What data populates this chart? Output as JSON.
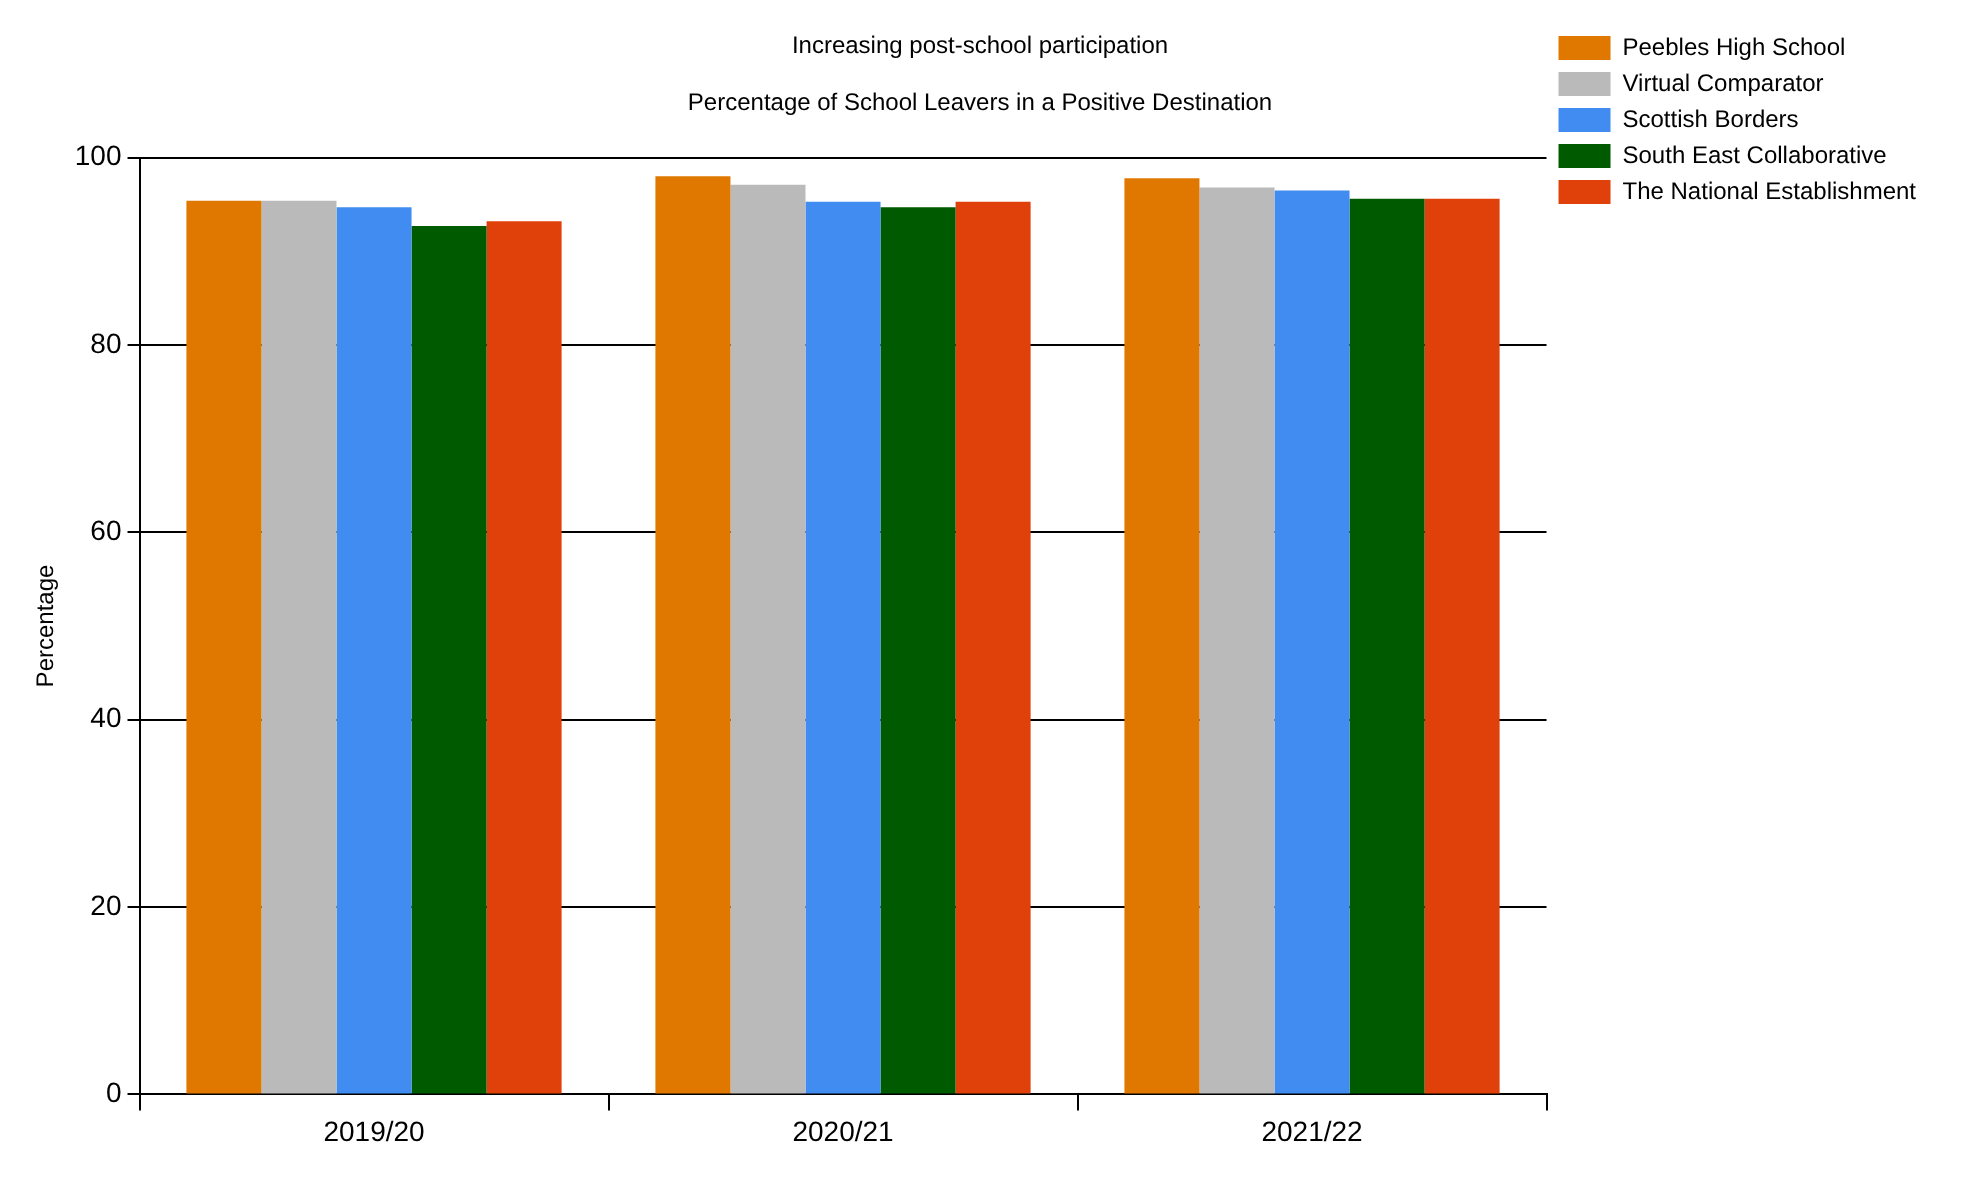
{
  "chart_data": {
    "type": "bar",
    "title": "Increasing post-school participation",
    "subtitle": "Percentage of School Leavers in a Positive Destination",
    "ylabel": "Percentage",
    "categories": [
      "2019/20",
      "2020/21",
      "2021/22"
    ],
    "series": [
      {
        "name": "Peebles High School",
        "color": "#e07800",
        "values": [
          95.4,
          98.0,
          97.8
        ]
      },
      {
        "name": "Virtual Comparator",
        "color": "#bababa",
        "values": [
          95.4,
          97.1,
          96.8
        ]
      },
      {
        "name": "Scottish Borders",
        "color": "#418cf0",
        "values": [
          94.7,
          95.3,
          96.5
        ]
      },
      {
        "name": "South East Collaborative",
        "color": "#005a00",
        "values": [
          92.7,
          94.7,
          95.6
        ]
      },
      {
        "name": "The National Establishment",
        "color": "#e0400a",
        "values": [
          93.2,
          95.3,
          95.6
        ]
      }
    ],
    "ylim": [
      0,
      100
    ],
    "yticks": [
      0,
      20,
      40,
      60,
      80,
      100
    ],
    "grid": "y",
    "legend": "top right"
  }
}
